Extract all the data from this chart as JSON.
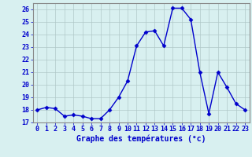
{
  "hours": [
    0,
    1,
    2,
    3,
    4,
    5,
    6,
    7,
    8,
    9,
    10,
    11,
    12,
    13,
    14,
    15,
    16,
    17,
    18,
    19,
    20,
    21,
    22,
    23
  ],
  "temperatures": [
    18.0,
    18.2,
    18.1,
    17.5,
    17.6,
    17.5,
    17.3,
    17.3,
    18.0,
    19.0,
    20.3,
    23.1,
    24.2,
    24.3,
    23.1,
    26.1,
    26.1,
    25.2,
    21.0,
    17.7,
    21.0,
    19.8,
    18.5,
    18.0
  ],
  "line_color": "#0000cc",
  "marker": "D",
  "marker_size": 2.5,
  "bg_color": "#d8f0f0",
  "grid_color": "#b0c8c8",
  "xlabel": "Graphe des températures (°c)",
  "xlabel_color": "#0000cc",
  "xlabel_fontsize": 7,
  "tick_color": "#0000cc",
  "tick_fontsize": 6,
  "ylim": [
    17,
    26.5
  ],
  "yticks": [
    17,
    18,
    19,
    20,
    21,
    22,
    23,
    24,
    25,
    26
  ],
  "xticks": [
    0,
    1,
    2,
    3,
    4,
    5,
    6,
    7,
    8,
    9,
    10,
    11,
    12,
    13,
    14,
    15,
    16,
    17,
    18,
    19,
    20,
    21,
    22,
    23
  ],
  "line_width": 1.0
}
